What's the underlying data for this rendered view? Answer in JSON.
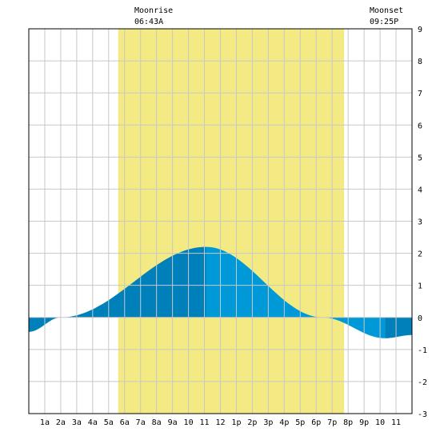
{
  "chart_data": {
    "type": "area",
    "title": "",
    "xlabel": "",
    "ylabel": "",
    "x_tick_labels": [
      "1a",
      "2a",
      "3a",
      "4a",
      "5a",
      "6a",
      "7a",
      "8a",
      "9a",
      "10",
      "11",
      "12",
      "1p",
      "2p",
      "3p",
      "4p",
      "5p",
      "6p",
      "7p",
      "8p",
      "9p",
      "10",
      "11"
    ],
    "xlim_hours": [
      0,
      24
    ],
    "ylim": [
      -3,
      9
    ],
    "y_ticks": [
      -3,
      -2,
      -1,
      0,
      1,
      2,
      3,
      4,
      5,
      6,
      7,
      8,
      9
    ],
    "grid": true,
    "daylight_band_hours": [
      5.6,
      19.75
    ],
    "moon_events": [
      {
        "label": "Moonrise",
        "time": "06:43A",
        "hour": 6.72
      },
      {
        "label": "Moonset",
        "time": "09:25P",
        "hour": 21.42
      }
    ],
    "tide_points": [
      {
        "hour": 0,
        "height": -0.45
      },
      {
        "hour": 2.0,
        "height": 0.0
      },
      {
        "hour": 11.1,
        "height": 2.2
      },
      {
        "hour": 18.4,
        "height": 0.0
      },
      {
        "hour": 22.3,
        "height": -0.65
      },
      {
        "hour": 24,
        "height": -0.55
      }
    ],
    "colors": {
      "daylight": "#f4ea84",
      "tide_light": "#0099d8",
      "tide_dark": "#0080bb",
      "grid": "#c8c8c8",
      "axis": "#000000"
    }
  }
}
